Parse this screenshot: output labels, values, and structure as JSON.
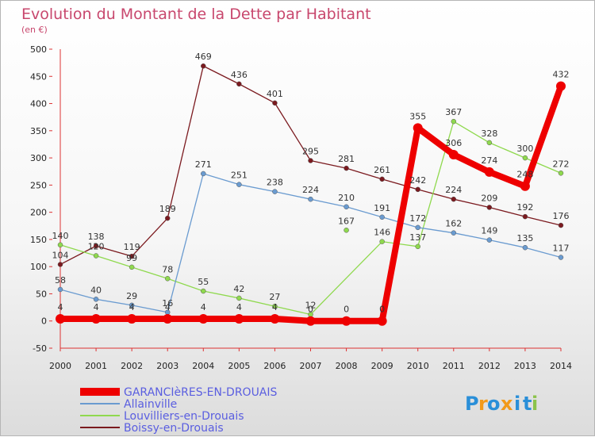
{
  "chart_data": {
    "type": "line",
    "title": "Evolution du Montant de la Dette par Habitant",
    "subtitle": "(en €)",
    "xlabel": "",
    "ylabel": "",
    "x": [
      "2000",
      "2001",
      "2002",
      "2003",
      "2004",
      "2005",
      "2006",
      "2007",
      "2008",
      "2009",
      "2010",
      "2011",
      "2012",
      "2013",
      "2014"
    ],
    "yticks": [
      "-50",
      "0",
      "50",
      "100",
      "150",
      "200",
      "250",
      "300",
      "350",
      "400",
      "450",
      "500"
    ],
    "ylim": [
      -50,
      500
    ],
    "grid": false,
    "legend_position": "bottom-left",
    "series": [
      {
        "name": "Boissy-en-Drouais",
        "color": "#7b1a1f",
        "values": [
          104,
          138,
          119,
          189,
          469,
          436,
          401,
          295,
          281,
          261,
          242,
          224,
          209,
          192,
          176
        ],
        "labels": [
          "104",
          "138",
          "119",
          "189",
          "469",
          "436",
          "401",
          "295",
          "281",
          "261",
          "242",
          "224",
          "209",
          "192",
          "176"
        ]
      },
      {
        "name": "Louvilliers-en-Drouais",
        "color": "#8fd94e",
        "values": [
          140,
          120,
          99,
          78,
          55,
          42,
          27,
          12,
          null,
          146,
          137,
          367,
          328,
          300,
          272
        ],
        "labels": [
          "140",
          "120",
          "99",
          "78",
          "55",
          "42",
          "27",
          "12",
          "",
          "146",
          "137",
          "367",
          "328",
          "300",
          "272"
        ],
        "extra_points": [
          {
            "x": "2008",
            "value": 167,
            "label": "167"
          }
        ]
      },
      {
        "name": "Allainville",
        "color": "#6a9bd0",
        "values": [
          58,
          40,
          29,
          16,
          271,
          251,
          238,
          224,
          210,
          191,
          172,
          162,
          149,
          135,
          117
        ],
        "labels": [
          "58",
          "40",
          "29",
          "16",
          "271",
          "251",
          "238",
          "224",
          "210",
          "191",
          "172",
          "162",
          "149",
          "135",
          "117"
        ]
      },
      {
        "name": "GARANCIèRES-EN-DROUAIS",
        "color": "#ee0000",
        "values": [
          4,
          4,
          4,
          4,
          4,
          4,
          4,
          0,
          0,
          0,
          355,
          306,
          274,
          248,
          432
        ],
        "labels": [
          "4",
          "4",
          "4",
          "4",
          "4",
          "4",
          "4",
          "0",
          "0",
          "0",
          "355",
          "306",
          "274",
          "248",
          "432"
        ]
      }
    ]
  },
  "legend": [
    {
      "label": "GARANCIèRES-EN-DROUAIS",
      "color": "#ee0000"
    },
    {
      "label": "Allainville",
      "color": "#6a9bd0"
    },
    {
      "label": "Louvilliers-en-Drouais",
      "color": "#8fd94e"
    },
    {
      "label": "Boissy-en-Drouais",
      "color": "#7b1a1f"
    }
  ],
  "logo": {
    "text": "Proxiti",
    "letters": [
      "P",
      "r",
      "o",
      "x",
      "i",
      "t",
      "i"
    ],
    "colors": [
      "#2a8fd8",
      "#f29a1a",
      "#2a8fd8",
      "#f29a1a",
      "#2a8fd8",
      "#2a8fd8",
      "#8bc34a"
    ]
  }
}
